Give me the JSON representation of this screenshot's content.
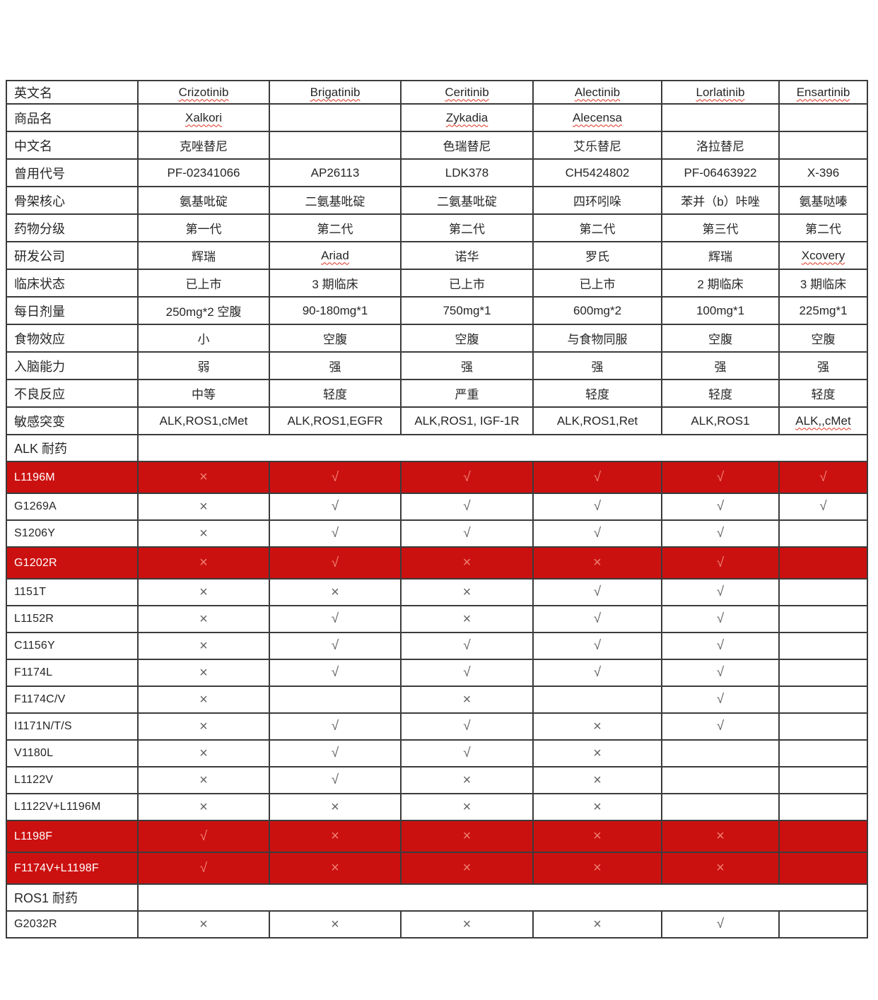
{
  "colors": {
    "red_row_bg": "#cb1110",
    "red_row_symbol": "#ef8173",
    "red_row_text": "#ffffff",
    "grid": "#3b3b3b",
    "text": "#262626",
    "symbol": "#636363",
    "wavy_underline": "#e0301e"
  },
  "symbols": {
    "check": "√",
    "cross": "×"
  },
  "rows": [
    {
      "type": "info",
      "label": "英文名",
      "cells": [
        {
          "text": "Crizotinib",
          "wavy": true
        },
        {
          "text": "Brigatinib",
          "wavy": true
        },
        {
          "text": "Ceritinib",
          "wavy": true
        },
        {
          "text": "Alectinib",
          "wavy": true
        },
        {
          "text": "Lorlatinib",
          "wavy": true
        },
        {
          "text": "Ensartinib",
          "wavy": true
        }
      ]
    },
    {
      "type": "info",
      "label": "商品名",
      "cells": [
        {
          "text": "Xalkori",
          "wavy": true
        },
        {
          "text": "",
          "wavy": false
        },
        {
          "text": "Zykadia",
          "wavy": true
        },
        {
          "text": "Alecensa",
          "wavy": true
        },
        {
          "text": "",
          "wavy": false
        },
        {
          "text": "",
          "wavy": false
        }
      ]
    },
    {
      "type": "info",
      "label": "中文名",
      "cells": [
        {
          "text": "克唑替尼",
          "wavy": false
        },
        {
          "text": "",
          "wavy": false
        },
        {
          "text": "色瑞替尼",
          "wavy": false
        },
        {
          "text": "艾乐替尼",
          "wavy": false
        },
        {
          "text": "洛拉替尼",
          "wavy": false
        },
        {
          "text": "",
          "wavy": false
        }
      ]
    },
    {
      "type": "info",
      "label": "曾用代号",
      "cells": [
        {
          "text": "PF-02341066",
          "wavy": false
        },
        {
          "text": "AP26113",
          "wavy": false
        },
        {
          "text": "LDK378",
          "wavy": false
        },
        {
          "text": "CH5424802",
          "wavy": false
        },
        {
          "text": "PF-06463922",
          "wavy": false
        },
        {
          "text": "X-396",
          "wavy": false
        }
      ]
    },
    {
      "type": "info",
      "label": "骨架核心",
      "cells": [
        {
          "text": "氨基吡碇",
          "wavy": false
        },
        {
          "text": "二氨基吡碇",
          "wavy": false
        },
        {
          "text": "二氨基吡碇",
          "wavy": false
        },
        {
          "text": "四环吲哚",
          "wavy": false
        },
        {
          "text": "苯并（b）咔唑",
          "wavy": false
        },
        {
          "text": "氨基哒嗪",
          "wavy": false
        }
      ]
    },
    {
      "type": "info",
      "label": "药物分级",
      "cells": [
        {
          "text": "第一代",
          "wavy": false
        },
        {
          "text": "第二代",
          "wavy": false
        },
        {
          "text": "第二代",
          "wavy": false
        },
        {
          "text": "第二代",
          "wavy": false
        },
        {
          "text": "第三代",
          "wavy": false
        },
        {
          "text": "第二代",
          "wavy": false
        }
      ]
    },
    {
      "type": "info",
      "label": "研发公司",
      "cells": [
        {
          "text": "辉瑞",
          "wavy": false
        },
        {
          "text": "Ariad",
          "wavy": true
        },
        {
          "text": "诺华",
          "wavy": false
        },
        {
          "text": "罗氏",
          "wavy": false
        },
        {
          "text": "辉瑞",
          "wavy": false
        },
        {
          "text": "Xcovery",
          "wavy": true
        }
      ]
    },
    {
      "type": "info",
      "label": "临床状态",
      "cells": [
        {
          "text": "已上市",
          "wavy": false
        },
        {
          "text": "3 期临床",
          "wavy": false
        },
        {
          "text": "已上市",
          "wavy": false
        },
        {
          "text": "已上市",
          "wavy": false
        },
        {
          "text": "2 期临床",
          "wavy": false
        },
        {
          "text": "3 期临床",
          "wavy": false
        }
      ]
    },
    {
      "type": "info",
      "label": "每日剂量",
      "cells": [
        {
          "text": "250mg*2 空腹",
          "wavy": false
        },
        {
          "text": "90-180mg*1",
          "wavy": false
        },
        {
          "text": "750mg*1",
          "wavy": false
        },
        {
          "text": "600mg*2",
          "wavy": false
        },
        {
          "text": "100mg*1",
          "wavy": false
        },
        {
          "text": "225mg*1",
          "wavy": false
        }
      ]
    },
    {
      "type": "info",
      "label": "食物效应",
      "cells": [
        {
          "text": "小",
          "wavy": false
        },
        {
          "text": "空腹",
          "wavy": false
        },
        {
          "text": "空腹",
          "wavy": false
        },
        {
          "text": "与食物同服",
          "wavy": false
        },
        {
          "text": "空腹",
          "wavy": false
        },
        {
          "text": "空腹",
          "wavy": false
        }
      ]
    },
    {
      "type": "info",
      "label": "入脑能力",
      "cells": [
        {
          "text": "弱",
          "wavy": false
        },
        {
          "text": "强",
          "wavy": false
        },
        {
          "text": "强",
          "wavy": false
        },
        {
          "text": "强",
          "wavy": false
        },
        {
          "text": "强",
          "wavy": false
        },
        {
          "text": "强",
          "wavy": false
        }
      ]
    },
    {
      "type": "info",
      "label": "不良反应",
      "cells": [
        {
          "text": "中等",
          "wavy": false
        },
        {
          "text": "轻度",
          "wavy": false
        },
        {
          "text": "严重",
          "wavy": false
        },
        {
          "text": "轻度",
          "wavy": false
        },
        {
          "text": "轻度",
          "wavy": false
        },
        {
          "text": "轻度",
          "wavy": false
        }
      ]
    },
    {
      "type": "info",
      "label": "敏感突变",
      "cells": [
        {
          "text": "ALK,ROS1,cMet",
          "wavy": false
        },
        {
          "text": "ALK,ROS1,EGFR",
          "wavy": false
        },
        {
          "text": "ALK,ROS1, IGF-1R",
          "wavy": false
        },
        {
          "text": "ALK,ROS1,Ret",
          "wavy": false
        },
        {
          "text": "ALK,ROS1",
          "wavy": false
        },
        {
          "text": "ALK,,cMet",
          "wavy": true
        }
      ]
    },
    {
      "type": "section",
      "label": "ALK 耐药"
    },
    {
      "type": "mutation",
      "label": "L1196M",
      "red": true,
      "cells": [
        "cross",
        "check",
        "check",
        "check",
        "check",
        "check"
      ]
    },
    {
      "type": "mutation",
      "label": "G1269A",
      "red": false,
      "cells": [
        "cross",
        "check",
        "check",
        "check",
        "check",
        "check"
      ]
    },
    {
      "type": "mutation",
      "label": "S1206Y",
      "red": false,
      "cells": [
        "cross",
        "check",
        "check",
        "check",
        "check",
        ""
      ]
    },
    {
      "type": "mutation",
      "label": "G1202R",
      "red": true,
      "cells": [
        "cross",
        "check",
        "cross",
        "cross",
        "check",
        ""
      ]
    },
    {
      "type": "mutation",
      "label": "1151T",
      "red": false,
      "cells": [
        "cross",
        "cross",
        "cross",
        "check",
        "check",
        ""
      ]
    },
    {
      "type": "mutation",
      "label": "L1152R",
      "red": false,
      "cells": [
        "cross",
        "check",
        "cross",
        "check",
        "check",
        ""
      ]
    },
    {
      "type": "mutation",
      "label": "C1156Y",
      "red": false,
      "cells": [
        "cross",
        "check",
        "check",
        "check",
        "check",
        ""
      ]
    },
    {
      "type": "mutation",
      "label": "F1174L",
      "red": false,
      "cells": [
        "cross",
        "check",
        "check",
        "check",
        "check",
        ""
      ]
    },
    {
      "type": "mutation",
      "label": "F1174C/V",
      "red": false,
      "cells": [
        "cross",
        "",
        "cross",
        "",
        "check",
        ""
      ]
    },
    {
      "type": "mutation",
      "label": "I1171N/T/S",
      "red": false,
      "cells": [
        "cross",
        "check",
        "check",
        "cross",
        "check",
        ""
      ]
    },
    {
      "type": "mutation",
      "label": "V1180L",
      "red": false,
      "cells": [
        "cross",
        "check",
        "check",
        "cross",
        "",
        ""
      ]
    },
    {
      "type": "mutation",
      "label": "L1122V",
      "red": false,
      "cells": [
        "cross",
        "check",
        "cross",
        "cross",
        "",
        ""
      ]
    },
    {
      "type": "mutation",
      "label": "L1122V+L1196M",
      "red": false,
      "cells": [
        "cross",
        "cross",
        "cross",
        "cross",
        "",
        ""
      ]
    },
    {
      "type": "mutation",
      "label": "L1198F",
      "red": true,
      "cells": [
        "check",
        "cross",
        "cross",
        "cross",
        "cross",
        ""
      ]
    },
    {
      "type": "mutation",
      "label": "F1174V+L1198F",
      "red": true,
      "cells": [
        "check",
        "cross",
        "cross",
        "cross",
        "cross",
        ""
      ]
    },
    {
      "type": "section",
      "label": "ROS1 耐药"
    },
    {
      "type": "mutation",
      "label": "G2032R",
      "red": false,
      "cells": [
        "cross",
        "cross",
        "cross",
        "cross",
        "check",
        ""
      ]
    }
  ]
}
